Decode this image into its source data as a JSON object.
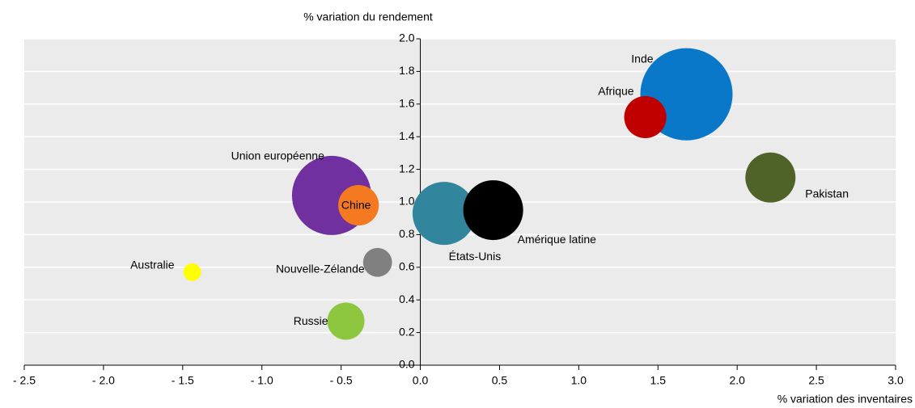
{
  "chart_data": {
    "type": "bubble",
    "y_label": "% variation du rendement",
    "x_label": "% variation des inventaires",
    "categories": [
      "Inde",
      "Afrique",
      "Pakistan",
      "Union européenne",
      "Chine",
      "États-Unis",
      "Amérique latine",
      "Nouvelle-Zélande",
      "Australie",
      "Russie"
    ],
    "x": [
      1.68,
      1.42,
      2.21,
      -0.56,
      -0.39,
      0.15,
      0.46,
      -0.27,
      -1.44,
      -0.47
    ],
    "values": [
      1.66,
      1.52,
      1.15,
      1.04,
      0.98,
      0.93,
      0.95,
      0.63,
      0.57,
      0.27
    ],
    "sizes": [
      32.5,
      6.8,
      9.6,
      24,
      6.3,
      15.2,
      13.7,
      3.2,
      1.2,
      5.3
    ],
    "colors": [
      "#0a78c8",
      "#c00000",
      "#4f6228",
      "#7030a0",
      "#f47920",
      "#31859c",
      "#000000",
      "#808080",
      "#ffff00",
      "#8dc63f"
    ],
    "xlim": [
      -2.5,
      3.0
    ],
    "xticks": [
      {
        "value": -2.5,
        "label": "- 2.5"
      },
      {
        "value": -2.0,
        "label": "- 2.0"
      },
      {
        "value": -1.5,
        "label": "- 1.5"
      },
      {
        "value": -1.0,
        "label": "- 1.0"
      },
      {
        "value": -0.5,
        "label": "- 0.5"
      },
      {
        "value": 0,
        "label": "0.0"
      },
      0.5,
      {
        "value": 1,
        "label": "1.0"
      },
      1.5,
      {
        "value": 2,
        "label": "2.0"
      },
      2.5,
      {
        "value": 3,
        "label": "3.0"
      }
    ],
    "ylim": [
      0,
      2.0
    ],
    "yticks": [
      {
        "value": 0,
        "label": "0.0"
      },
      0.2,
      0.4,
      0.6,
      0.8,
      {
        "value": 1,
        "label": "1.0"
      },
      1.2,
      1.4,
      1.6,
      1.8,
      {
        "value": 2,
        "label": "2.0"
      }
    ],
    "grid": true
  }
}
